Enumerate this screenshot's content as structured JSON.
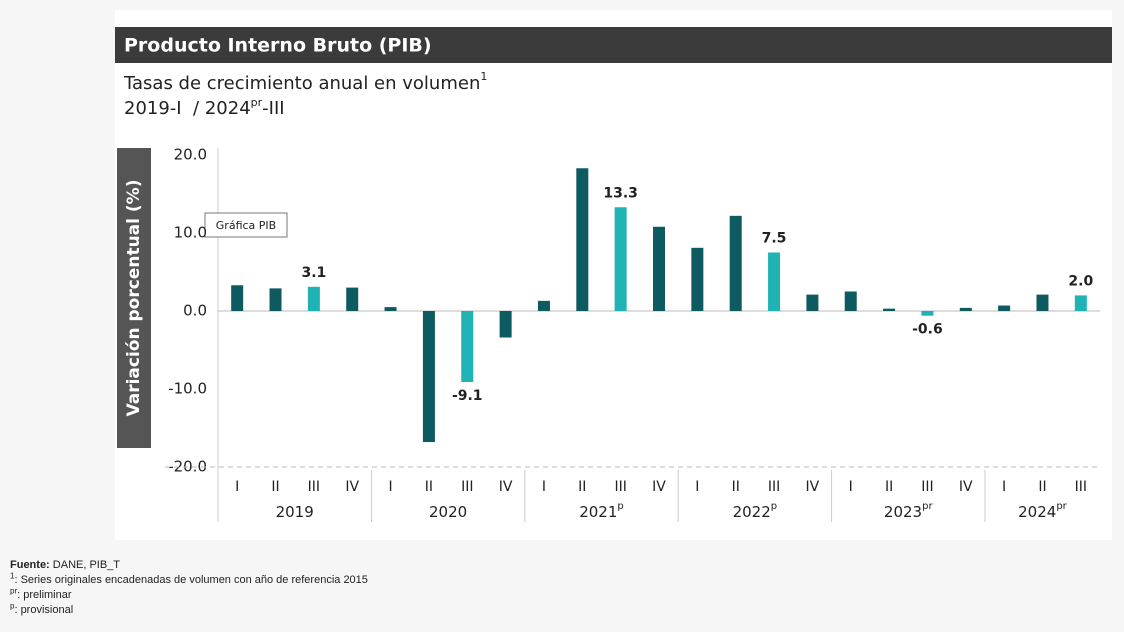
{
  "header": {
    "title": "Producto Interno Bruto (PIB)"
  },
  "chart_data": {
    "type": "bar",
    "subtitle": "Tasas de crecimiento anual en volumen",
    "subtitle_mark": "1",
    "period": [
      "2019-I  / 2024",
      "pr",
      "-III"
    ],
    "ylabel": "Variación porcentual (%)",
    "tooltip": "Gráfica PIB",
    "categories": [
      "I",
      "II",
      "III",
      "IV",
      "I",
      "II",
      "III",
      "IV",
      "I",
      "II",
      "III",
      "IV",
      "I",
      "II",
      "III",
      "IV",
      "I",
      "II",
      "III",
      "IV",
      "I",
      "II",
      "III"
    ],
    "groups": [
      {
        "label": "2019",
        "mark": null
      },
      {
        "label": "2020",
        "mark": null
      },
      {
        "label": "2021",
        "mark": "p"
      },
      {
        "label": "2022",
        "mark": "p"
      },
      {
        "label": "2023",
        "mark": "pr"
      },
      {
        "label": "2024",
        "mark": "pr"
      }
    ],
    "values": [
      3.3,
      2.9,
      3.1,
      3.0,
      0.5,
      -16.8,
      -9.1,
      -3.4,
      1.3,
      18.3,
      13.3,
      10.8,
      8.1,
      12.2,
      7.5,
      2.1,
      2.5,
      0.3,
      -0.6,
      0.4,
      0.7,
      2.1,
      2.0
    ],
    "value_labels": [
      null,
      null,
      "3.1",
      null,
      null,
      null,
      "-9.1",
      null,
      null,
      null,
      "13.3",
      null,
      null,
      null,
      "7.5",
      null,
      null,
      null,
      "-0.6",
      null,
      null,
      null,
      "2.0"
    ],
    "color": "#0e5a61",
    "highlight_color": "#1fb3b6",
    "ylim": [
      -20,
      20
    ],
    "yticks": [
      {
        "value": -20,
        "label": "-20.0"
      },
      {
        "value": -10,
        "label": "-10.0"
      },
      {
        "value": 0,
        "label": "0.0"
      },
      {
        "value": 10,
        "label": "10.0"
      },
      {
        "value": 20,
        "label": "20.0"
      }
    ]
  },
  "footer": {
    "source_label": "Fuente:",
    "source": " DANE, PIB_T",
    "notes": [
      {
        "mark": "1",
        "text": ": Series originales encadenadas de volumen con año de referencia 2015"
      },
      {
        "mark": "pr",
        "text": ": preliminar"
      },
      {
        "mark": "p",
        "text": ": provisional"
      }
    ]
  }
}
